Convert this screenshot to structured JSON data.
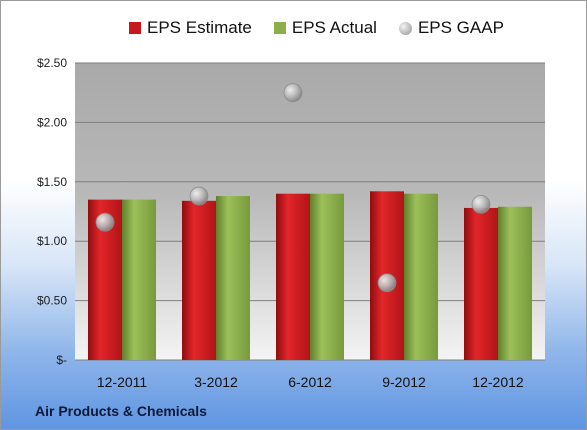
{
  "chart_data": {
    "type": "bar",
    "categories": [
      "12-2011",
      "3-2012",
      "6-2012",
      "9-2012",
      "12-2012"
    ],
    "series": [
      {
        "name": "EPS Estimate",
        "type": "bar",
        "color": "#c8181c",
        "values": [
          1.35,
          1.34,
          1.4,
          1.42,
          1.28
        ]
      },
      {
        "name": "EPS Actual",
        "type": "bar",
        "color": "#8bb04a",
        "values": [
          1.35,
          1.38,
          1.4,
          1.4,
          1.29
        ]
      },
      {
        "name": "EPS GAAP",
        "type": "scatter",
        "color": "#b0b0b0",
        "values": [
          1.16,
          1.38,
          2.25,
          0.65,
          1.31
        ]
      }
    ],
    "ylim": [
      0,
      2.5
    ],
    "yticks": [
      0,
      0.5,
      1.0,
      1.5,
      2.0,
      2.5
    ],
    "ytick_labels": [
      "$-",
      "$0.50",
      "$1.00",
      "$1.50",
      "$2.00",
      "$2.50"
    ],
    "grid": true,
    "legend_position": "top"
  },
  "legend": {
    "estimate": "EPS Estimate",
    "actual": "EPS Actual",
    "gaap": "EPS GAAP"
  },
  "company": "Air Products & Chemicals"
}
